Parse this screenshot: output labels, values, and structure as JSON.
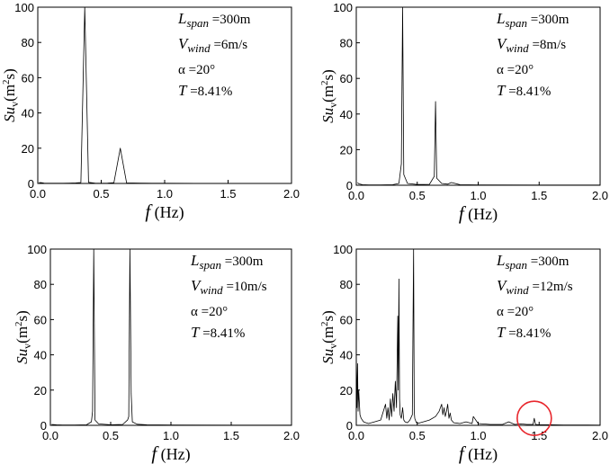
{
  "chart_data": [
    {
      "type": "line",
      "xlabel": {
        "symbol": "f",
        "unit": "(Hz)"
      },
      "ylabel": {
        "main": "Su",
        "sub": "v",
        "unit_open": "(m",
        "unit_sup": "2",
        "unit_close": "s)"
      },
      "xlim": [
        0,
        2.0
      ],
      "ylim": [
        0,
        100
      ],
      "xticks": [
        "0.0",
        "0.5",
        "1.0",
        "1.5",
        "2.0"
      ],
      "yticks": [
        "0",
        "20",
        "40",
        "60",
        "80",
        "100"
      ],
      "annotations": {
        "l_sym": "L",
        "l_sub": "span",
        "l_val": " =300m",
        "v_sym": "V",
        "v_sub": "wind",
        "v_val": " =6m/s",
        "alpha": "α =20°",
        "t_sym": "T",
        "t_val": " =8.41%"
      },
      "series": [
        {
          "x": [
            0.01,
            0.03,
            0.05,
            0.1,
            0.15,
            0.2,
            0.25,
            0.3,
            0.34,
            0.37,
            0.4,
            0.45,
            0.5,
            0.55,
            0.6,
            0.65,
            0.7,
            0.8,
            0.9,
            1.0,
            1.5,
            2.0
          ],
          "y": [
            0.5,
            0.4,
            0.2,
            0.1,
            0.1,
            0.1,
            0.2,
            0.3,
            0.5,
            100,
            0.6,
            0.2,
            0.1,
            0.2,
            0.4,
            20,
            0.3,
            0.2,
            0.1,
            0.1,
            0.0,
            0.0
          ]
        }
      ]
    },
    {
      "type": "line",
      "xlabel": {
        "symbol": "f",
        "unit": "(Hz)"
      },
      "ylabel": {
        "main": "Su",
        "sub": "v",
        "unit_open": "(m",
        "unit_sup": "2",
        "unit_close": "s)"
      },
      "xlim": [
        0,
        2.0
      ],
      "ylim": [
        0,
        100
      ],
      "xticks": [
        "0.0",
        "0.5",
        "1.0",
        "1.5",
        "2.0"
      ],
      "yticks": [
        "0",
        "20",
        "40",
        "60",
        "80",
        "100"
      ],
      "annotations": {
        "l_sym": "L",
        "l_sub": "span",
        "l_val": " =300m",
        "v_sym": "V",
        "v_sub": "wind",
        "v_val": " =8m/s",
        "alpha": "α =20°",
        "t_sym": "T",
        "t_val": " =8.41%"
      },
      "series": [
        {
          "x": [
            0.01,
            0.02,
            0.05,
            0.1,
            0.2,
            0.3,
            0.35,
            0.37,
            0.38,
            0.39,
            0.42,
            0.5,
            0.6,
            0.64,
            0.65,
            0.66,
            0.7,
            0.75,
            0.78,
            0.85,
            1.0,
            1.5,
            2.0
          ],
          "y": [
            1.5,
            0.8,
            0.3,
            0.2,
            0.2,
            0.3,
            1.0,
            12,
            100,
            6,
            1.0,
            0.4,
            0.5,
            5,
            47,
            4,
            1.0,
            0.6,
            1.5,
            0.3,
            0.2,
            0.1,
            0.1
          ]
        }
      ]
    },
    {
      "type": "line",
      "xlabel": {
        "symbol": "f",
        "unit": "(Hz)"
      },
      "ylabel": {
        "main": "Su",
        "sub": "v",
        "unit_open": "(m",
        "unit_sup": "2",
        "unit_close": "s)"
      },
      "xlim": [
        0,
        2.0
      ],
      "ylim": [
        0,
        100
      ],
      "xticks": [
        "0.0",
        "0.5",
        "1.0",
        "1.5",
        "2.0"
      ],
      "yticks": [
        "0",
        "20",
        "40",
        "60",
        "80",
        "100"
      ],
      "annotations": {
        "l_sym": "L",
        "l_sub": "span",
        "l_val": " =300m",
        "v_sym": "V",
        "v_sub": "wind",
        "v_val": " =10m/s",
        "alpha": "α =20°",
        "t_sym": "T",
        "t_val": " =8.41%"
      },
      "series": [
        {
          "x": [
            0.01,
            0.05,
            0.1,
            0.2,
            0.3,
            0.34,
            0.35,
            0.36,
            0.37,
            0.4,
            0.5,
            0.6,
            0.64,
            0.65,
            0.66,
            0.67,
            0.68,
            0.72,
            0.8,
            1.0,
            1.5,
            2.0
          ],
          "y": [
            0.5,
            0.3,
            0.2,
            0.2,
            0.3,
            2,
            8,
            100,
            3,
            0.8,
            0.3,
            0.5,
            3,
            5,
            100,
            18,
            2,
            0.6,
            0.3,
            0.2,
            0.1,
            0.1
          ]
        }
      ]
    },
    {
      "type": "line",
      "xlabel": {
        "symbol": "f",
        "unit": "(Hz)"
      },
      "ylabel": {
        "main": "Su",
        "sub": "v",
        "unit_open": "(m",
        "unit_sup": "2",
        "unit_close": "s)"
      },
      "xlim": [
        0,
        2.0
      ],
      "ylim": [
        0,
        100
      ],
      "xticks": [
        "0.0",
        "0.5",
        "1.0",
        "1.5",
        "2.0"
      ],
      "yticks": [
        "0",
        "20",
        "40",
        "60",
        "80",
        "100"
      ],
      "annotations": {
        "l_sym": "L",
        "l_sub": "span",
        "l_val": " =300m",
        "v_sym": "V",
        "v_sub": "wind",
        "v_val": " =12m/s",
        "alpha": "α =20°",
        "t_sym": "T",
        "t_val": " =8.41%"
      },
      "highlight": {
        "x": 1.46,
        "y": 4,
        "color": "#e8262c"
      },
      "series": [
        {
          "x": [
            0.0,
            0.005,
            0.01,
            0.015,
            0.02,
            0.03,
            0.04,
            0.06,
            0.08,
            0.1,
            0.15,
            0.2,
            0.24,
            0.25,
            0.26,
            0.27,
            0.28,
            0.29,
            0.3,
            0.31,
            0.32,
            0.33,
            0.34,
            0.345,
            0.35,
            0.355,
            0.36,
            0.37,
            0.38,
            0.39,
            0.4,
            0.42,
            0.44,
            0.46,
            0.47,
            0.475,
            0.48,
            0.49,
            0.5,
            0.55,
            0.6,
            0.65,
            0.68,
            0.7,
            0.71,
            0.72,
            0.73,
            0.74,
            0.75,
            0.76,
            0.77,
            0.78,
            0.8,
            0.85,
            0.9,
            0.95,
            0.96,
            1.0,
            1.1,
            1.2,
            1.25,
            1.3,
            1.35,
            1.4,
            1.45,
            1.46,
            1.47,
            1.5,
            1.6,
            1.7,
            1.8,
            1.9,
            2.0
          ],
          "y": [
            42,
            10,
            35,
            8,
            20,
            6,
            4,
            2,
            1.5,
            1,
            2,
            3,
            12,
            4,
            10,
            3,
            15,
            5,
            18,
            8,
            25,
            10,
            62,
            20,
            83,
            15,
            6,
            4,
            10,
            3,
            2,
            1.5,
            3,
            6,
            100,
            8,
            4,
            2,
            1,
            2,
            3,
            5,
            8,
            12,
            6,
            10,
            5,
            8,
            12,
            4,
            7,
            3,
            1.5,
            1,
            2,
            1,
            5,
            1,
            0.5,
            0.5,
            2,
            0.5,
            0.8,
            0.5,
            0.5,
            4,
            0.5,
            0.3,
            0.3,
            0.2,
            0.2,
            0.2,
            0.1
          ]
        }
      ]
    }
  ]
}
